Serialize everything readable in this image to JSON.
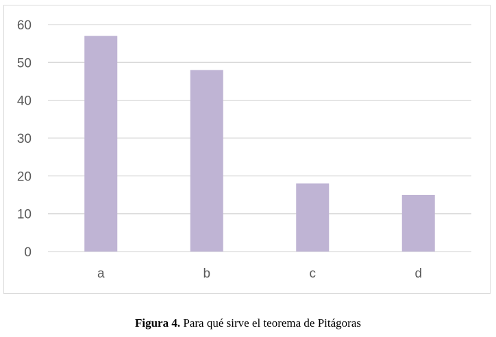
{
  "chart_data": {
    "type": "bar",
    "categories": [
      "a",
      "b",
      "c",
      "d"
    ],
    "values": [
      57,
      48,
      18,
      15
    ],
    "title": "",
    "xlabel": "",
    "ylabel": "",
    "ylim": [
      0,
      60
    ],
    "yticks": [
      0,
      10,
      20,
      30,
      40,
      50,
      60
    ],
    "grid": true,
    "bar_color": "#bfb4d4",
    "grid_color": "#d9d9d9"
  },
  "caption": {
    "prefix": "Figura 4.",
    "text": " Para qué sirve el teorema de Pitágoras"
  }
}
